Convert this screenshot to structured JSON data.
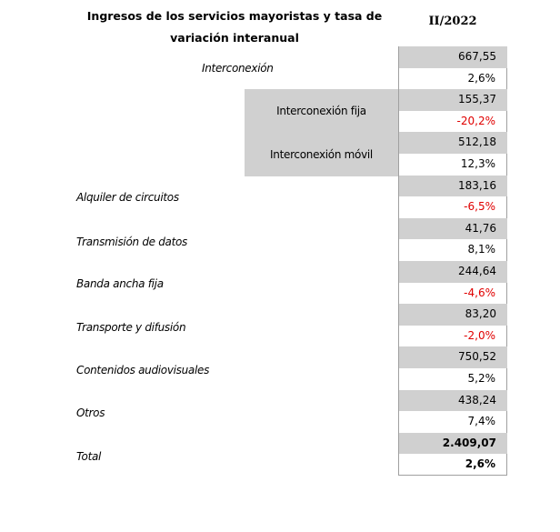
{
  "header": {
    "title": "Ingresos de los servicios mayoristas y tasa de variación interanual",
    "period": "II/2022"
  },
  "rows": [
    {
      "label": "Interconexión",
      "value": "667,55",
      "rate": "2,6%",
      "negative": false
    },
    {
      "label": "Interconexión fija",
      "value": "155,37",
      "rate": "-20,2%",
      "negative": true
    },
    {
      "label": "Interconexión móvil",
      "value": "512,18",
      "rate": "12,3%",
      "negative": false
    },
    {
      "label": "Alquiler de circuitos",
      "value": "183,16",
      "rate": "-6,5%",
      "negative": true
    },
    {
      "label": "Transmisión de datos",
      "value": "41,76",
      "rate": "8,1%",
      "negative": false
    },
    {
      "label": "Banda ancha fija",
      "value": "244,64",
      "rate": "-4,6%",
      "negative": true
    },
    {
      "label": "Transporte y difusión",
      "value": "83,20",
      "rate": "-2,0%",
      "negative": true
    },
    {
      "label": "Contenidos audiovisuales",
      "value": "750,52",
      "rate": "5,2%",
      "negative": false
    },
    {
      "label": "Otros",
      "value": "438,24",
      "rate": "7,4%",
      "negative": false
    },
    {
      "label": "Total",
      "value": "2.409,07",
      "rate": "2,6%",
      "negative": false
    }
  ],
  "colors": {
    "value_bg": "#d0d0d0",
    "negative_text": "#e00000"
  }
}
